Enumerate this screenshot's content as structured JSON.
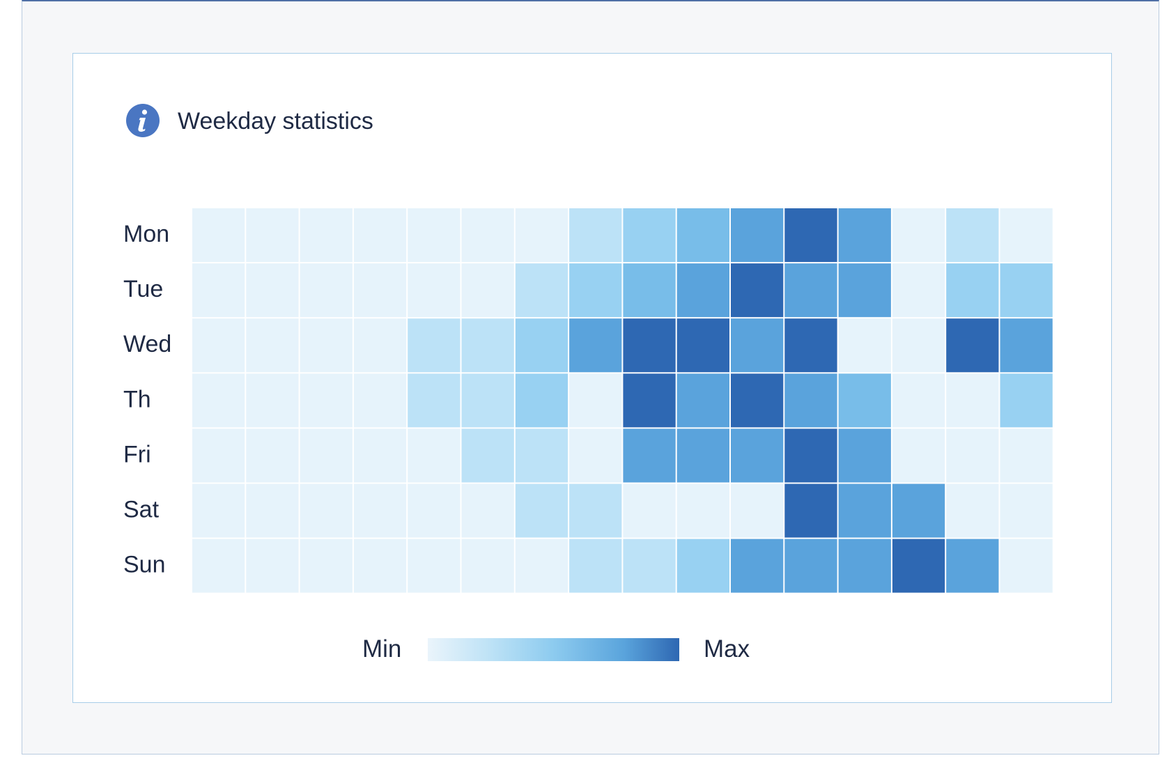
{
  "title": "Weekday statistics",
  "icons": {
    "info": "info-icon"
  },
  "colors": {
    "scale": [
      "#e6f3fb",
      "#bce2f7",
      "#98d1f2",
      "#78bde9",
      "#5aa3dc",
      "#2e68b3"
    ],
    "title_text": "#1f2a44",
    "icon_bg": "#4a76c2"
  },
  "legend": {
    "min_label": "Min",
    "max_label": "Max"
  },
  "chart_data": {
    "type": "heatmap",
    "title": "Weekday statistics",
    "rows": [
      "Mon",
      "Tue",
      "Wed",
      "Th",
      "Fri",
      "Sat",
      "Sun"
    ],
    "columns_count": 16,
    "value_scale": "0 = Min, 5 = Max",
    "values": [
      [
        0,
        0,
        0,
        0,
        0,
        0,
        0,
        1,
        2,
        3,
        4,
        5,
        4,
        0,
        1,
        0
      ],
      [
        0,
        0,
        0,
        0,
        0,
        0,
        1,
        2,
        3,
        4,
        5,
        4,
        4,
        0,
        2,
        2
      ],
      [
        0,
        0,
        0,
        0,
        1,
        1,
        2,
        4,
        5,
        5,
        4,
        5,
        0,
        0,
        5,
        4
      ],
      [
        0,
        0,
        0,
        0,
        1,
        1,
        2,
        0,
        5,
        4,
        5,
        4,
        3,
        0,
        0,
        2
      ],
      [
        0,
        0,
        0,
        0,
        0,
        1,
        1,
        0,
        4,
        4,
        4,
        5,
        4,
        0,
        0,
        0
      ],
      [
        0,
        0,
        0,
        0,
        0,
        0,
        1,
        1,
        0,
        0,
        0,
        5,
        4,
        4,
        0,
        0
      ],
      [
        0,
        0,
        0,
        0,
        0,
        0,
        0,
        1,
        1,
        2,
        4,
        4,
        4,
        5,
        4,
        0
      ]
    ]
  }
}
